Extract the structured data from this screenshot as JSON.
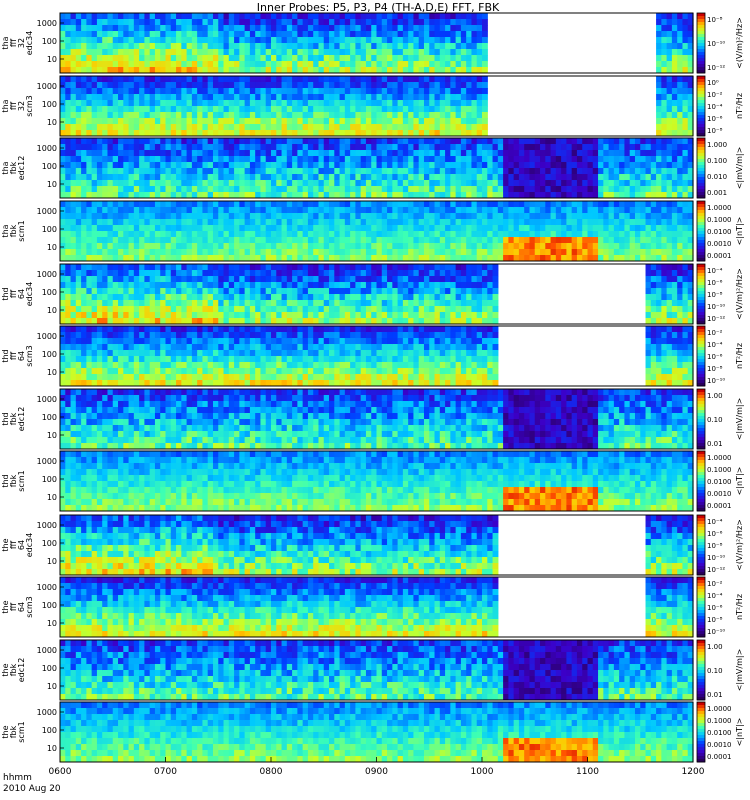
{
  "chart_data": {
    "type": "heatmap",
    "title": "Inner Probes: P5, P3, P4 (TH-A,D,E) FFT, FBK",
    "x_axis": {
      "ticks": [
        "0600",
        "0700",
        "0800",
        "0900",
        "1000",
        "1100",
        "1200"
      ],
      "label_line1": "hhmm",
      "label_line2": "2010 Aug 20",
      "range": [
        "06:00",
        "12:00"
      ]
    },
    "panels": [
      {
        "probe": "tha",
        "ylabel": [
          "tha",
          "fff",
          "32",
          "edc34"
        ],
        "yticks": [
          "1000",
          "100",
          "10"
        ],
        "cbar_label": "<(V/m)²/Hz>",
        "cbar_ticks": [
          "10⁻⁸",
          "10⁻¹⁰",
          "10⁻¹²"
        ],
        "cbar_scale": "log",
        "kind": "fff",
        "gaps": [
          [
            10.03,
            11.63
          ]
        ]
      },
      {
        "probe": "tha",
        "ylabel": [
          "tha",
          "fff",
          "32",
          "scm3"
        ],
        "yticks": [
          "1000",
          "100",
          "10"
        ],
        "cbar_label": "nT²/Hz",
        "cbar_ticks": [
          "10⁰",
          "10⁻²",
          "10⁻⁴",
          "10⁻⁶",
          "10⁻⁸"
        ],
        "cbar_scale": "log",
        "kind": "scm",
        "gaps": [
          [
            10.03,
            11.63
          ]
        ]
      },
      {
        "probe": "tha",
        "ylabel": [
          "tha",
          "fbk",
          "edc12"
        ],
        "yticks": [
          "1000",
          "100",
          "10"
        ],
        "cbar_label": "<|mV/m|>",
        "cbar_ticks": [
          "1.000",
          "0.100",
          "0.010",
          "0.001"
        ],
        "cbar_scale": "log",
        "kind": "fbke",
        "gaps": []
      },
      {
        "probe": "tha",
        "ylabel": [
          "tha",
          "fbk",
          "scm1"
        ],
        "yticks": [
          "1000",
          "100",
          "10"
        ],
        "cbar_label": "<|nT|>",
        "cbar_ticks": [
          "1.0000",
          "0.1000",
          "0.0100",
          "0.0010",
          "0.0001"
        ],
        "cbar_scale": "log",
        "kind": "fbks",
        "gaps": []
      },
      {
        "probe": "thd",
        "ylabel": [
          "thd",
          "fff",
          "64",
          "edc34"
        ],
        "yticks": [
          "1000",
          "100",
          "10"
        ],
        "cbar_label": "<(V/m)²/Hz>",
        "cbar_ticks": [
          "10⁻⁴",
          "10⁻⁶",
          "10⁻⁸",
          "10⁻¹⁰",
          "10⁻¹²"
        ],
        "cbar_scale": "log",
        "kind": "fff",
        "gaps": [
          [
            10.17,
            11.55
          ]
        ]
      },
      {
        "probe": "thd",
        "ylabel": [
          "thd",
          "fff",
          "64",
          "scm3"
        ],
        "yticks": [
          "1000",
          "100",
          "10"
        ],
        "cbar_label": "nT²/Hz",
        "cbar_ticks": [
          "10⁻²",
          "10⁻⁴",
          "10⁻⁶",
          "10⁻⁸",
          "10⁻¹⁰"
        ],
        "cbar_scale": "log",
        "kind": "scm",
        "gaps": [
          [
            10.17,
            11.55
          ]
        ]
      },
      {
        "probe": "thd",
        "ylabel": [
          "thd",
          "fbk",
          "edc12"
        ],
        "yticks": [
          "1000",
          "100",
          "10"
        ],
        "cbar_label": "<|mV/m|>",
        "cbar_ticks": [
          "1.00",
          "0.10",
          "0.01"
        ],
        "cbar_scale": "log",
        "kind": "fbke",
        "gaps": []
      },
      {
        "probe": "thd",
        "ylabel": [
          "thd",
          "fbk",
          "scm1"
        ],
        "yticks": [
          "1000",
          "100",
          "10"
        ],
        "cbar_label": "<|nT|>",
        "cbar_ticks": [
          "1.0000",
          "0.1000",
          "0.0100",
          "0.0010",
          "0.0001"
        ],
        "cbar_scale": "log",
        "kind": "fbks",
        "gaps": []
      },
      {
        "probe": "the",
        "ylabel": [
          "the",
          "fff",
          "64",
          "edc34"
        ],
        "yticks": [
          "1000",
          "100",
          "10"
        ],
        "cbar_label": "<(V/m)²/Hz>",
        "cbar_ticks": [
          "10⁻⁴",
          "10⁻⁶",
          "10⁻⁸",
          "10⁻¹⁰",
          "10⁻¹²"
        ],
        "cbar_scale": "log",
        "kind": "fff",
        "gaps": [
          [
            10.17,
            11.55
          ]
        ]
      },
      {
        "probe": "the",
        "ylabel": [
          "the",
          "fff",
          "64",
          "scm3"
        ],
        "yticks": [
          "1000",
          "100",
          "10"
        ],
        "cbar_label": "nT²/Hz",
        "cbar_ticks": [
          "10⁻²",
          "10⁻⁴",
          "10⁻⁶",
          "10⁻⁸",
          "10⁻¹⁰"
        ],
        "cbar_scale": "log",
        "kind": "scm",
        "gaps": [
          [
            10.17,
            11.55
          ]
        ]
      },
      {
        "probe": "the",
        "ylabel": [
          "the",
          "fbk",
          "edc12"
        ],
        "yticks": [
          "1000",
          "100",
          "10"
        ],
        "cbar_label": "<|mV/m|>",
        "cbar_ticks": [
          "1.00",
          "0.10",
          "0.01"
        ],
        "cbar_scale": "log",
        "kind": "fbke",
        "gaps": []
      },
      {
        "probe": "the",
        "ylabel": [
          "the",
          "fbk",
          "scm1"
        ],
        "yticks": [
          "1000",
          "100",
          "10"
        ],
        "cbar_label": "<|nT|>",
        "cbar_ticks": [
          "1.0000",
          "0.1000",
          "0.0100",
          "0.0010",
          "0.0001"
        ],
        "cbar_scale": "log",
        "kind": "fbks",
        "gaps": []
      }
    ]
  }
}
